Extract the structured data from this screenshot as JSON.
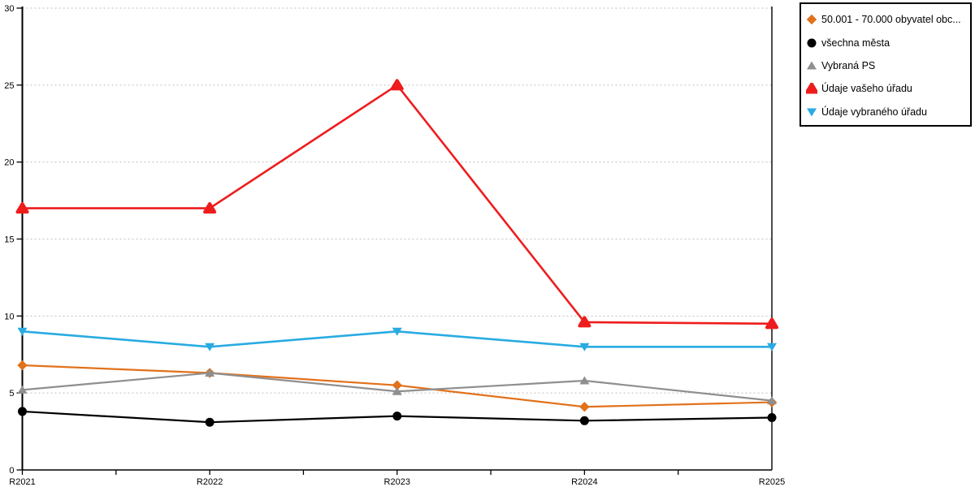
{
  "chart_data": {
    "type": "line",
    "title": "",
    "xlabel": "",
    "ylabel": "",
    "categories": [
      "R2021",
      "R2022",
      "R2023",
      "R2024",
      "R2025"
    ],
    "yticks": [
      0,
      5,
      10,
      15,
      20,
      25,
      30
    ],
    "ylim": [
      0,
      30
    ],
    "grid": "horizontal-dotted",
    "legend_position": "outside-top-right",
    "series": [
      {
        "name": "50.001 - 70.000 obyvatel obc...",
        "marker": "diamond",
        "color": "#E2711B",
        "values": [
          6.8,
          6.3,
          5.5,
          4.1,
          4.4
        ]
      },
      {
        "name": "všechna města",
        "marker": "circle",
        "color": "#000000",
        "values": [
          3.8,
          3.1,
          3.5,
          3.2,
          3.4
        ]
      },
      {
        "name": "Vybraná PS",
        "marker": "triangle-up",
        "color": "#8F8F8F",
        "values": [
          5.2,
          6.3,
          5.1,
          5.8,
          4.5
        ]
      },
      {
        "name": "Údaje vašeho úřadu",
        "marker": "triangle-up-rounded",
        "color": "#EE1C1C",
        "values": [
          17.0,
          17.0,
          25.0,
          9.6,
          9.5
        ]
      },
      {
        "name": "Údaje vybraného úřadu",
        "marker": "triangle-down",
        "color": "#29ABE2",
        "values": [
          9.0,
          8.0,
          9.0,
          8.0,
          8.0
        ]
      }
    ]
  },
  "colors": {
    "background": "#FFFFFF",
    "axis": "#000000",
    "grid": "#BFBFBF",
    "tick": "#000000",
    "legend_border": "#000000",
    "legend_background": "#FFFFFF"
  }
}
